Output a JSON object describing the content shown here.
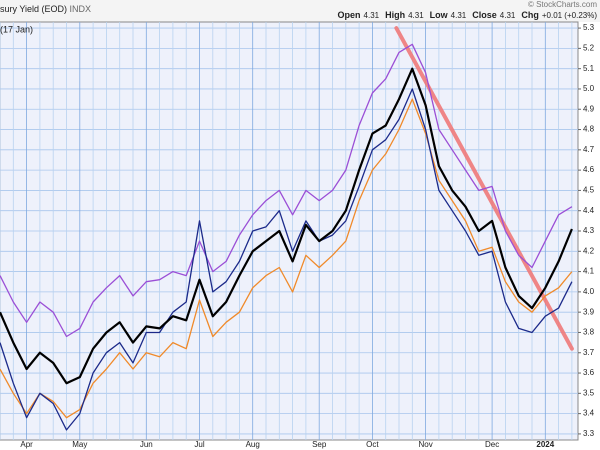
{
  "chart_data": {
    "type": "line",
    "title": "sury Yield (EOD)",
    "exchange": "INDX",
    "date_note": "(17 Jan)",
    "copyright": "© StockCharts.com",
    "quote": [
      {
        "label": "Open",
        "value": "4.31"
      },
      {
        "label": "High",
        "value": "4.31"
      },
      {
        "label": "Low",
        "value": "4.31"
      },
      {
        "label": "Close",
        "value": "4.31"
      },
      {
        "label": "Chg",
        "value": "+0.01 (+0.23%)"
      }
    ],
    "categories": [
      null,
      null,
      "Apr",
      null,
      null,
      null,
      "May",
      null,
      null,
      null,
      null,
      "Jun",
      null,
      null,
      null,
      "Jul",
      null,
      null,
      null,
      "Aug",
      null,
      null,
      null,
      null,
      "Sep",
      null,
      null,
      null,
      "Oct",
      null,
      null,
      null,
      "Nov",
      null,
      null,
      null,
      null,
      "Dec",
      null,
      null,
      null,
      "2024",
      null,
      null
    ],
    "series": [
      {
        "color": "#9b4fd6",
        "values": [
          4.08,
          3.95,
          3.85,
          3.95,
          3.9,
          3.78,
          3.82,
          3.95,
          4.02,
          4.08,
          3.98,
          4.05,
          4.06,
          4.1,
          4.08,
          4.25,
          4.1,
          4.15,
          4.28,
          4.38,
          4.45,
          4.5,
          4.38,
          4.5,
          4.45,
          4.5,
          4.6,
          4.82,
          4.98,
          5.05,
          5.18,
          5.22,
          5.08,
          4.8,
          4.7,
          4.6,
          4.5,
          4.52,
          4.3,
          4.18,
          4.12,
          4.25,
          4.38,
          4.42
        ]
      },
      {
        "color": "#f08a2a",
        "values": [
          3.62,
          3.5,
          3.4,
          3.5,
          3.46,
          3.38,
          3.42,
          3.55,
          3.62,
          3.7,
          3.62,
          3.7,
          3.68,
          3.75,
          3.72,
          3.96,
          3.78,
          3.85,
          3.9,
          4.02,
          4.08,
          4.12,
          4.0,
          4.18,
          4.12,
          4.18,
          4.25,
          4.45,
          4.6,
          4.68,
          4.8,
          4.95,
          4.78,
          4.55,
          4.45,
          4.35,
          4.2,
          4.22,
          4.05,
          3.95,
          3.9,
          3.98,
          4.02,
          4.1
        ]
      },
      {
        "color": "#1c2a8a",
        "values": [
          3.75,
          3.55,
          3.38,
          3.5,
          3.45,
          3.32,
          3.4,
          3.6,
          3.7,
          3.75,
          3.65,
          3.8,
          3.8,
          3.9,
          3.95,
          4.35,
          4.0,
          4.05,
          4.15,
          4.3,
          4.32,
          4.4,
          4.2,
          4.35,
          4.25,
          4.28,
          4.35,
          4.52,
          4.7,
          4.75,
          4.85,
          5.0,
          4.8,
          4.5,
          4.4,
          4.3,
          4.18,
          4.2,
          3.95,
          3.82,
          3.8,
          3.88,
          3.92,
          4.05
        ]
      },
      {
        "color": "#000000",
        "values": [
          3.9,
          3.75,
          3.62,
          3.7,
          3.65,
          3.55,
          3.58,
          3.72,
          3.8,
          3.85,
          3.75,
          3.83,
          3.82,
          3.88,
          3.86,
          4.06,
          3.88,
          3.95,
          4.08,
          4.2,
          4.25,
          4.3,
          4.15,
          4.33,
          4.25,
          4.3,
          4.4,
          4.6,
          4.78,
          4.82,
          4.95,
          5.1,
          4.92,
          4.62,
          4.5,
          4.42,
          4.3,
          4.35,
          4.12,
          3.98,
          3.92,
          4.02,
          4.15,
          4.31
        ]
      }
    ],
    "trendline": {
      "color": "#f07a7a",
      "x": [
        29.8,
        43
      ],
      "values": [
        5.3,
        3.72
      ]
    },
    "ylim": [
      3.27,
      5.33
    ],
    "yticks": [
      3.3,
      3.4,
      3.5,
      3.6,
      3.7,
      3.8,
      3.9,
      {
        "value": 4,
        "label": "4.0"
      },
      4.1,
      4.2,
      4.3,
      4.4,
      4.5,
      4.6,
      4.7,
      4.8,
      4.9,
      {
        "value": 5,
        "label": "5.0"
      },
      5.1,
      5.2,
      5.3
    ],
    "grid": true
  }
}
